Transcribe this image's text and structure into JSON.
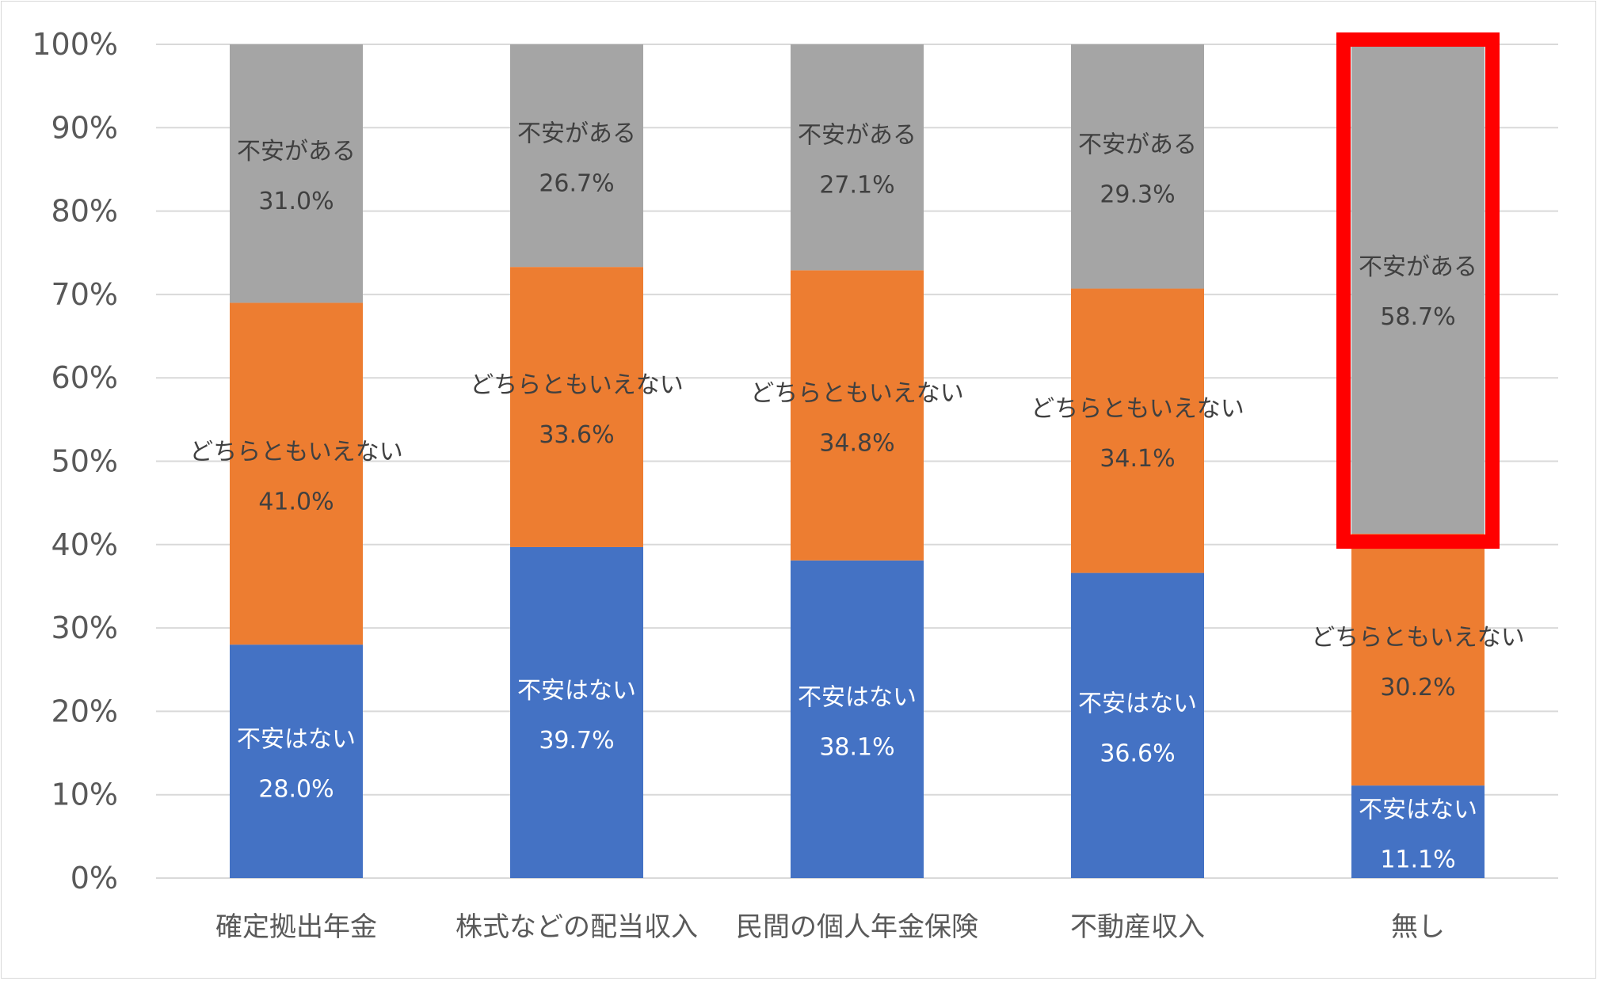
{
  "chart_data": {
    "type": "bar",
    "stacked": true,
    "categories": [
      "確定拠出年金",
      "株式などの配当収入",
      "民間の個人年金保険",
      "不動産収入",
      "無し"
    ],
    "series": [
      {
        "name": "不安はない",
        "values": [
          28.0,
          39.7,
          38.1,
          36.6,
          11.1
        ],
        "color": "#4472c4",
        "label_color": "#ffffff"
      },
      {
        "name": "どちらともいえない",
        "values": [
          41.0,
          33.6,
          34.8,
          34.1,
          30.2
        ],
        "color": "#ed7d31",
        "label_color": "#404040"
      },
      {
        "name": "不安がある",
        "values": [
          31.0,
          26.7,
          27.1,
          29.3,
          58.7
        ],
        "color": "#a5a5a5",
        "label_color": "#404040"
      }
    ],
    "value_labels": [
      [
        "28.0%",
        "39.7%",
        "38.1%",
        "36.6%",
        "11.1%"
      ],
      [
        "41.0%",
        "33.6%",
        "34.8%",
        "34.1%",
        "30.2%"
      ],
      [
        "31.0%",
        "26.7%",
        "27.1%",
        "29.3%",
        "58.7%"
      ]
    ],
    "ylim": [
      0,
      100
    ],
    "yticks": [
      "0%",
      "10%",
      "20%",
      "30%",
      "40%",
      "50%",
      "60%",
      "70%",
      "80%",
      "90%",
      "100%"
    ],
    "grid": true,
    "legend": "none",
    "highlight": {
      "category_index": 4,
      "series_index": 2,
      "color": "#ff0000"
    },
    "title": "",
    "xlabel": "",
    "ylabel": ""
  }
}
